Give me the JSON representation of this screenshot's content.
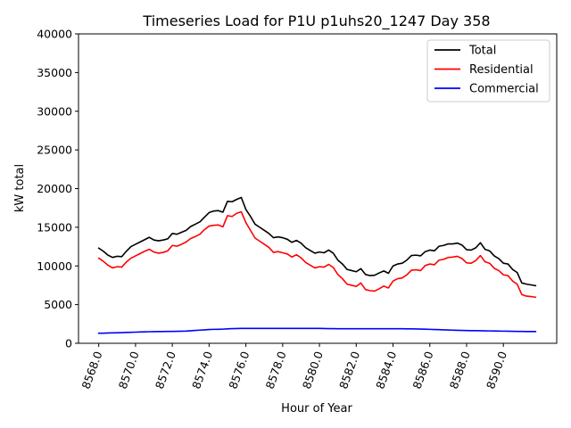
{
  "chart_data": {
    "type": "line",
    "title": "Timeseries Load for P1U p1uhs20_1247  Day 358",
    "xlabel": "Hour of Year",
    "ylabel": "kW total",
    "xlim": [
      8566.9,
      8592.9
    ],
    "ylim": [
      0,
      40000
    ],
    "xticks": [
      8568,
      8570,
      8572,
      8574,
      8576,
      8578,
      8580,
      8582,
      8584,
      8586,
      8588,
      8590
    ],
    "xtick_labels": [
      "8568.0",
      "8570.0",
      "8572.0",
      "8574.0",
      "8576.0",
      "8578.0",
      "8580.0",
      "8582.0",
      "8584.0",
      "8586.0",
      "8588.0",
      "8590.0"
    ],
    "yticks": [
      0,
      5000,
      10000,
      15000,
      20000,
      25000,
      30000,
      35000,
      40000
    ],
    "ytick_labels": [
      "0",
      "5000",
      "10000",
      "15000",
      "20000",
      "25000",
      "30000",
      "35000",
      "40000"
    ],
    "legend_position": "top-right",
    "x": [
      8568.0,
      8568.25,
      8568.5,
      8568.75,
      8569.0,
      8569.25,
      8569.5,
      8569.75,
      8570.0,
      8570.25,
      8570.5,
      8570.75,
      8571.0,
      8571.25,
      8571.5,
      8571.75,
      8572.0,
      8572.25,
      8572.5,
      8572.75,
      8573.0,
      8573.25,
      8573.5,
      8573.75,
      8574.0,
      8574.25,
      8574.5,
      8574.75,
      8575.0,
      8575.25,
      8575.5,
      8575.75,
      8576.0,
      8576.25,
      8576.5,
      8576.75,
      8577.0,
      8577.25,
      8577.5,
      8577.75,
      8578.0,
      8578.25,
      8578.5,
      8578.75,
      8579.0,
      8579.25,
      8579.5,
      8579.75,
      8580.0,
      8580.25,
      8580.5,
      8580.75,
      8581.0,
      8581.25,
      8581.5,
      8581.75,
      8582.0,
      8582.25,
      8582.5,
      8582.75,
      8583.0,
      8583.25,
      8583.5,
      8583.75,
      8584.0,
      8584.25,
      8584.5,
      8584.75,
      8585.0,
      8585.25,
      8585.5,
      8585.75,
      8586.0,
      8586.25,
      8586.5,
      8586.75,
      8587.0,
      8587.25,
      8587.5,
      8587.75,
      8588.0,
      8588.25,
      8588.5,
      8588.75,
      8589.0,
      8589.25,
      8589.5,
      8589.75,
      8590.0,
      8590.25,
      8590.5,
      8590.75,
      8591.0,
      8591.25,
      8591.5,
      8591.75
    ],
    "series": [
      {
        "name": "Total",
        "color": "#000000",
        "values": [
          12300,
          11900,
          11400,
          11100,
          11250,
          11200,
          11900,
          12500,
          12800,
          13100,
          13400,
          13700,
          13350,
          13250,
          13350,
          13500,
          14200,
          14100,
          14350,
          14600,
          15100,
          15400,
          15700,
          16300,
          16900,
          17100,
          17150,
          16950,
          18350,
          18300,
          18600,
          18850,
          17300,
          16400,
          15400,
          15000,
          14600,
          14200,
          13650,
          13750,
          13650,
          13450,
          13050,
          13300,
          12950,
          12350,
          12000,
          11650,
          11800,
          11700,
          12050,
          11650,
          10750,
          10250,
          9550,
          9400,
          9250,
          9650,
          8900,
          8750,
          8800,
          9100,
          9350,
          9050,
          10000,
          10250,
          10350,
          10750,
          11350,
          11400,
          11300,
          11850,
          12050,
          11950,
          12550,
          12650,
          12850,
          12850,
          12950,
          12700,
          12100,
          12050,
          12350,
          13000,
          12150,
          11950,
          11300,
          10950,
          10350,
          10250,
          9550,
          9150,
          7800,
          7650,
          7550,
          7450
        ]
      },
      {
        "name": "Residential",
        "color": "#ff0000",
        "values": [
          11000,
          10600,
          10100,
          9750,
          9900,
          9850,
          10500,
          11000,
          11300,
          11600,
          11900,
          12150,
          11800,
          11650,
          11750,
          11950,
          12650,
          12550,
          12800,
          13100,
          13550,
          13800,
          14100,
          14700,
          15150,
          15250,
          15300,
          15050,
          16500,
          16400,
          16800,
          17000,
          15600,
          14600,
          13600,
          13200,
          12800,
          12400,
          11750,
          11850,
          11700,
          11550,
          11150,
          11450,
          11050,
          10450,
          10100,
          9750,
          9900,
          9850,
          10200,
          9800,
          8900,
          8350,
          7650,
          7500,
          7350,
          7800,
          6950,
          6800,
          6750,
          7050,
          7400,
          7150,
          8050,
          8350,
          8450,
          8850,
          9450,
          9500,
          9400,
          10050,
          10250,
          10150,
          10750,
          10850,
          11100,
          11150,
          11250,
          10950,
          10400,
          10350,
          10700,
          11350,
          10550,
          10350,
          9700,
          9400,
          8850,
          8750,
          8050,
          7650,
          6300,
          6100,
          6050,
          5950
        ]
      },
      {
        "name": "Commercial",
        "color": "#0000ff",
        "values": [
          1300,
          1310,
          1330,
          1350,
          1360,
          1380,
          1400,
          1420,
          1440,
          1460,
          1480,
          1500,
          1510,
          1520,
          1520,
          1530,
          1540,
          1550,
          1560,
          1580,
          1620,
          1660,
          1700,
          1740,
          1780,
          1800,
          1810,
          1830,
          1860,
          1890,
          1910,
          1920,
          1920,
          1920,
          1920,
          1920,
          1920,
          1920,
          1920,
          1920,
          1920,
          1920,
          1920,
          1920,
          1920,
          1920,
          1920,
          1920,
          1920,
          1910,
          1900,
          1890,
          1880,
          1880,
          1880,
          1880,
          1880,
          1880,
          1880,
          1880,
          1880,
          1880,
          1880,
          1880,
          1880,
          1880,
          1880,
          1870,
          1860,
          1850,
          1840,
          1820,
          1800,
          1780,
          1760,
          1740,
          1720,
          1700,
          1680,
          1660,
          1650,
          1640,
          1630,
          1620,
          1610,
          1600,
          1590,
          1580,
          1570,
          1560,
          1550,
          1540,
          1530,
          1520,
          1520,
          1520
        ]
      }
    ]
  }
}
